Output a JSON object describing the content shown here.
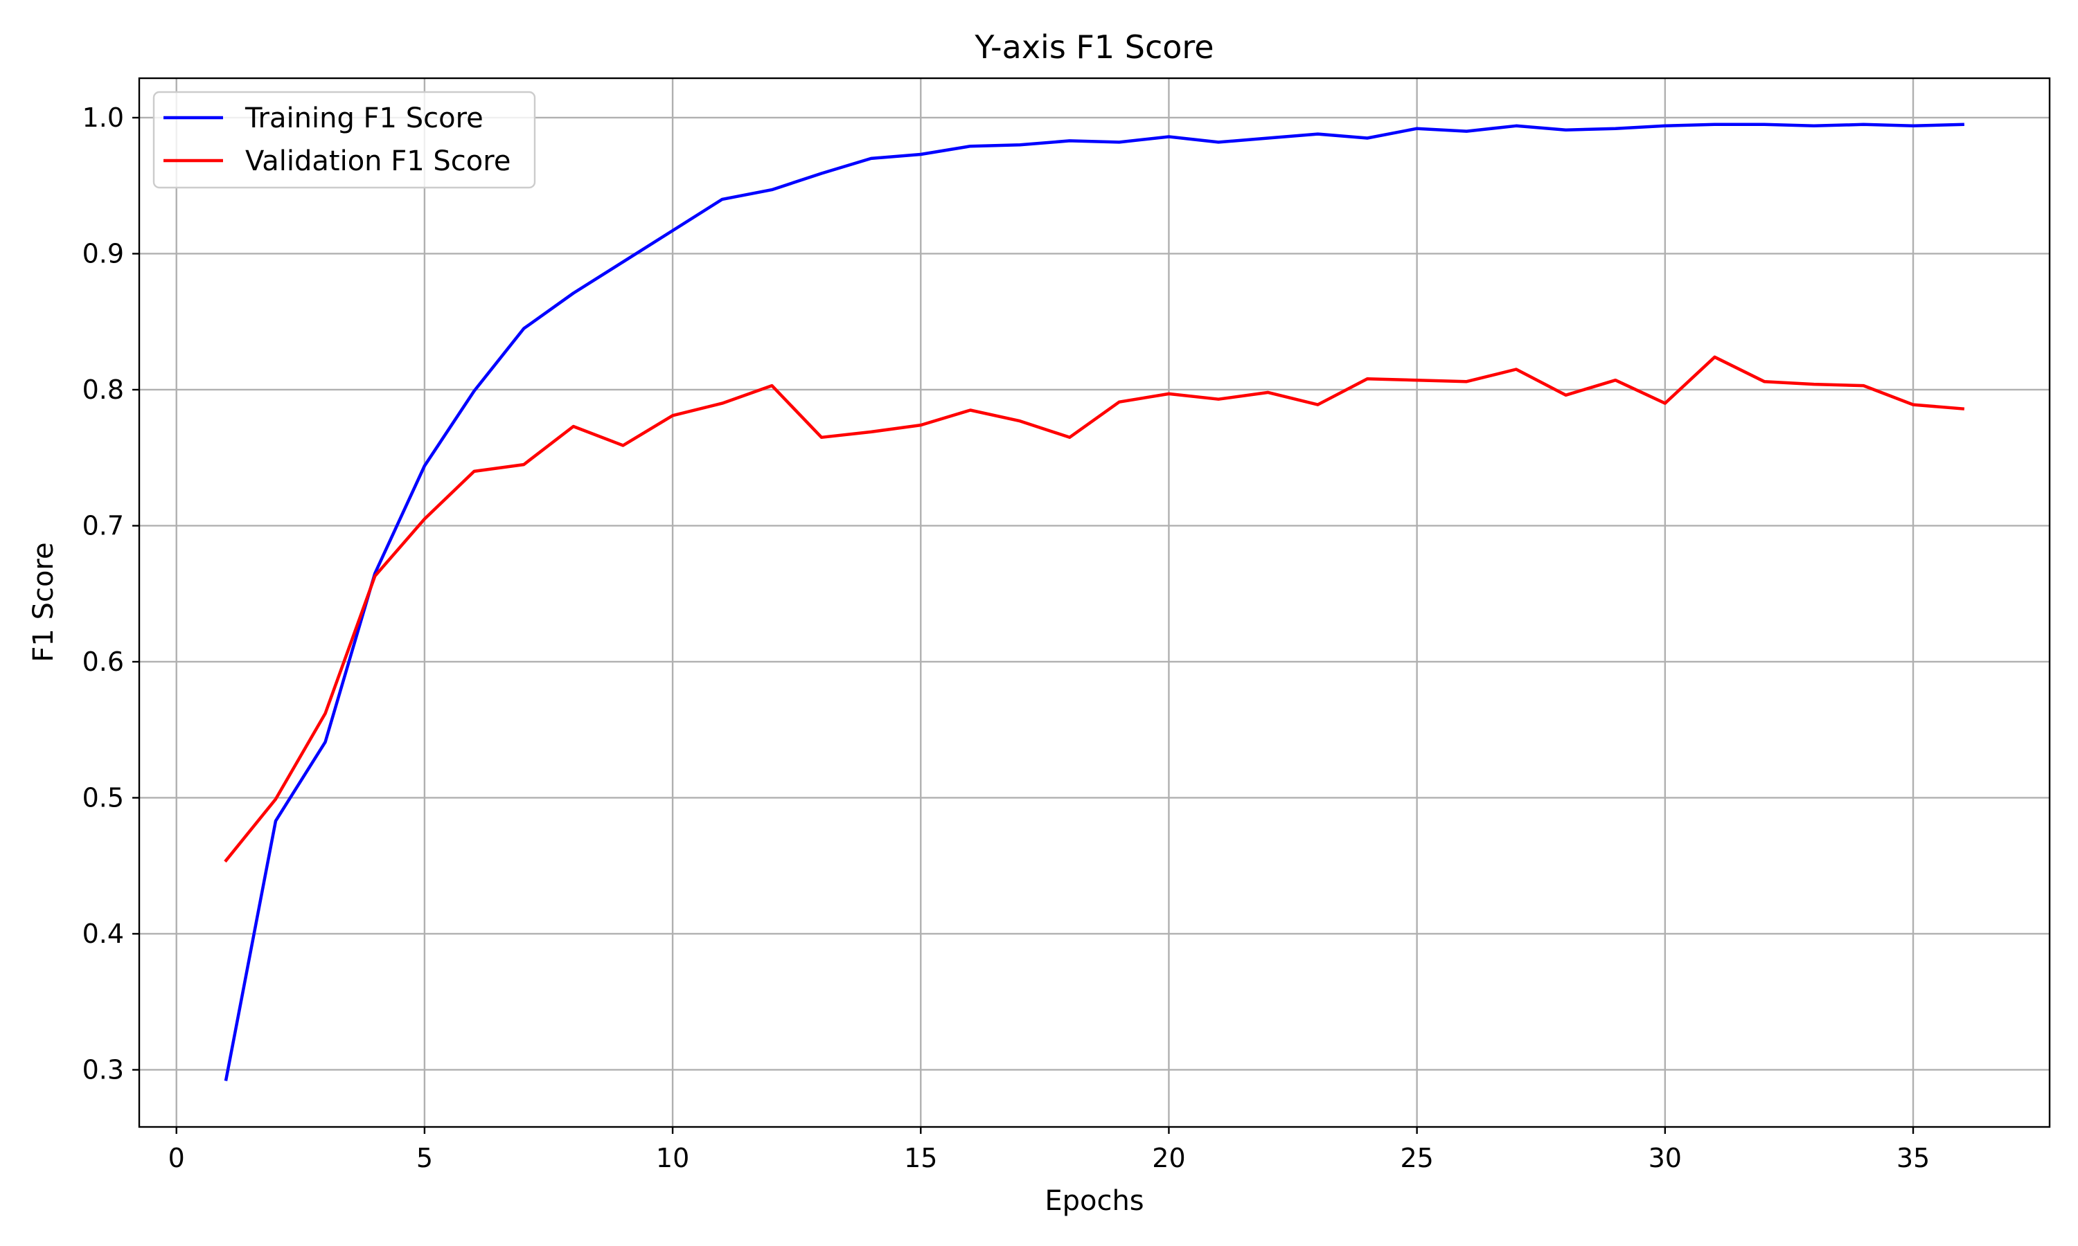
{
  "chart_data": {
    "type": "line",
    "title": "Y-axis F1 Score",
    "xlabel": "Epochs",
    "ylabel": "F1 Score",
    "xlim": [
      -0.75,
      37.75
    ],
    "ylim": [
      0.258,
      1.029
    ],
    "xticks": [
      0,
      5,
      10,
      15,
      20,
      25,
      30,
      35
    ],
    "yticks": [
      0.3,
      0.4,
      0.5,
      0.6,
      0.7,
      0.8,
      0.9,
      1.0
    ],
    "xtick_labels": [
      "0",
      "5",
      "10",
      "15",
      "20",
      "25",
      "30",
      "35"
    ],
    "ytick_labels": [
      "0.3",
      "0.4",
      "0.5",
      "0.6",
      "0.7",
      "0.8",
      "0.9",
      "1.0"
    ],
    "grid": true,
    "legend_position": "top-left",
    "x": [
      1,
      2,
      3,
      4,
      5,
      6,
      7,
      8,
      9,
      10,
      11,
      12,
      13,
      14,
      15,
      16,
      17,
      18,
      19,
      20,
      21,
      22,
      23,
      24,
      25,
      26,
      27,
      28,
      29,
      30,
      31,
      32,
      33,
      34,
      35,
      36
    ],
    "series": [
      {
        "name": "Training F1 Score",
        "color": "#0000ff",
        "values": [
          0.293,
          0.483,
          0.541,
          0.665,
          0.744,
          0.799,
          0.845,
          0.871,
          0.894,
          0.917,
          0.94,
          0.947,
          0.959,
          0.97,
          0.973,
          0.979,
          0.98,
          0.983,
          0.982,
          0.986,
          0.982,
          0.985,
          0.988,
          0.985,
          0.992,
          0.99,
          0.994,
          0.991,
          0.992,
          0.994,
          0.995,
          0.995,
          0.994,
          0.995,
          0.994,
          0.995
        ]
      },
      {
        "name": "Validation F1 Score",
        "color": "#ff0000",
        "values": [
          0.454,
          0.499,
          0.562,
          0.663,
          0.705,
          0.74,
          0.745,
          0.773,
          0.759,
          0.781,
          0.79,
          0.803,
          0.765,
          0.769,
          0.774,
          0.785,
          0.777,
          0.765,
          0.791,
          0.797,
          0.793,
          0.798,
          0.789,
          0.808,
          0.807,
          0.806,
          0.815,
          0.796,
          0.807,
          0.79,
          0.824,
          0.806,
          0.804,
          0.803,
          0.789,
          0.786
        ]
      }
    ]
  },
  "style": {
    "grid_color": "#b0b0b0",
    "axis_color": "#000000",
    "legend_border": "#cccccc"
  }
}
